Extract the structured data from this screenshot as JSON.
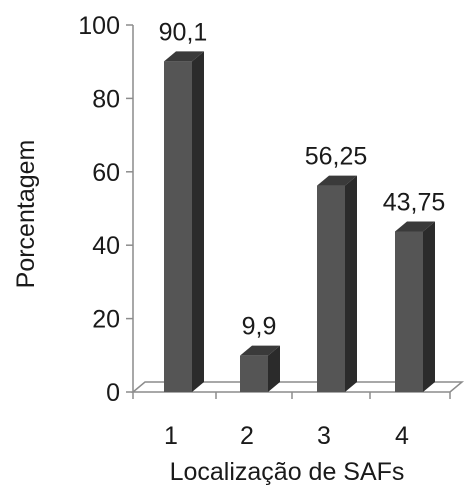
{
  "chart_data": {
    "type": "bar",
    "title": "",
    "xlabel": "Localização de SAFs",
    "ylabel": "Porcentagem",
    "categories": [
      "1",
      "2",
      "3",
      "4"
    ],
    "values": [
      90.1,
      9.9,
      56.25,
      43.75
    ],
    "data_labels": [
      "90,1",
      "9,9",
      "56,25",
      "43,75"
    ],
    "y_ticks": [
      0,
      20,
      40,
      60,
      80,
      100
    ],
    "ylim": [
      0,
      100
    ],
    "grid": false,
    "style": "3d-column",
    "bar_color": "#555555",
    "bar_top_color": "#3a3a3a",
    "bar_side_color": "#2b2b2b",
    "axis_color": "#8c8c8c"
  }
}
